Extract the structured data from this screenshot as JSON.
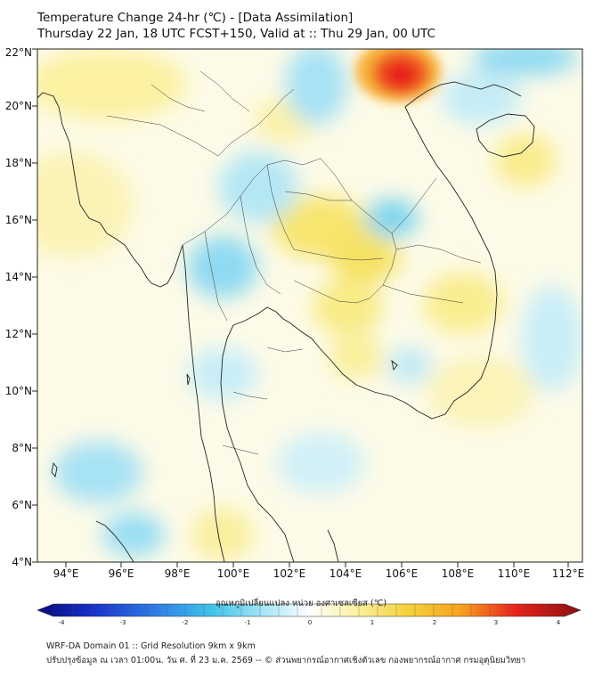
{
  "title": {
    "line1": "Temperature Change 24-hr (℃) - [Data Assimilation]",
    "line2": "Thursday 22 Jan, 18 UTC FCST+150, Valid at :: Thu 29 Jan, 00 UTC"
  },
  "map": {
    "lat_labels": [
      "4°N",
      "6°N",
      "8°N",
      "10°N",
      "12°N",
      "14°N",
      "16°N",
      "18°N",
      "20°N",
      "22°N"
    ],
    "lon_labels": [
      "94°E",
      "96°E",
      "98°E",
      "100°E",
      "102°E",
      "104°E",
      "106°E",
      "108°E",
      "110°E",
      "112°E"
    ],
    "colors": {
      "land_border": "#222222",
      "warm_light": "#fbf3a8",
      "warm_mid": "#f5df5a",
      "hot_orange": "#f7a21d",
      "hot_red": "#e8231b",
      "cool_light": "#bfe9f5",
      "cool_mid": "#7fd6f0",
      "cool_cyan": "#3ec3ea"
    }
  },
  "colorbar": {
    "title": "อุณหภูมิเปลี่ยนแปลง หน่วย องศาเซลเซียส (℃)",
    "ticks": [
      "-4",
      "-3",
      "-2",
      "-1",
      "0",
      "1",
      "2",
      "3",
      "4"
    ],
    "min": -4,
    "max": 4,
    "colors": [
      "#0a0a7a",
      "#1730c8",
      "#2f7fe6",
      "#3ec3ea",
      "#a9e6f6",
      "#ffffff",
      "#fbf3a8",
      "#f5d23c",
      "#f7a21d",
      "#e8231b",
      "#8a0f0f"
    ]
  },
  "footer": {
    "line1": "WRF-DA Domain 01 :: Grid Resolution 9km x 9km",
    "line2": "ปรับปรุงข้อมูล ณ เวลา 01:00น. วัน ศ. ที่ 23 ม.ค. 2569 -- © ส่วนพยากรณ์อากาศเชิงตัวเลข กองพยากรณ์อากาศ กรมอุตุนิยมวิทยา"
  }
}
